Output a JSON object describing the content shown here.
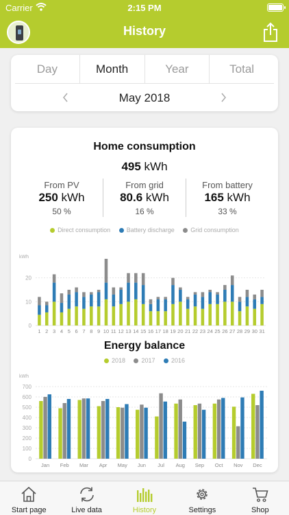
{
  "status_bar": {
    "carrier": "Carrier",
    "time": "2:15 PM"
  },
  "header": {
    "title": "History"
  },
  "period": {
    "tabs": [
      {
        "label": "Day"
      },
      {
        "label": "Month",
        "active": true
      },
      {
        "label": "Year"
      },
      {
        "label": "Total"
      }
    ],
    "current": "May 2018"
  },
  "consumption": {
    "title": "Home consumption",
    "total_value": "495",
    "total_unit": "kWh",
    "stats": [
      {
        "label": "From PV",
        "value": "250",
        "unit": "kWh",
        "percent": "50 %"
      },
      {
        "label": "From grid",
        "value": "80.6",
        "unit": "kWh",
        "percent": "16 %"
      },
      {
        "label": "From battery",
        "value": "165",
        "unit": "kWh",
        "percent": "33 %"
      }
    ],
    "legend": [
      {
        "label": "Direct consumption",
        "color": "#b5cc2e"
      },
      {
        "label": "Battery discharge",
        "color": "#2e7cb5"
      },
      {
        "label": "Grid consumption",
        "color": "#8c8c8c"
      }
    ]
  },
  "energy_balance": {
    "title": "Energy balance",
    "legend": [
      {
        "label": "2018",
        "color": "#b5cc2e"
      },
      {
        "label": "2017",
        "color": "#8c8c8c"
      },
      {
        "label": "2016",
        "color": "#2e7cb5"
      }
    ]
  },
  "chart_data": [
    {
      "type": "bar",
      "stacked": true,
      "unit": "kWh",
      "ylim": [
        0,
        30
      ],
      "yticks": [
        0,
        10,
        20
      ],
      "grid": true,
      "categories": [
        "1",
        "2",
        "3",
        "4",
        "5",
        "6",
        "7",
        "8",
        "9",
        "10",
        "11",
        "12",
        "13",
        "14",
        "15",
        "16",
        "17",
        "18",
        "19",
        "20",
        "21",
        "22",
        "23",
        "24",
        "25",
        "26",
        "27",
        "28",
        "29",
        "30",
        "31"
      ],
      "series": [
        {
          "name": "Direct consumption",
          "color": "#b5cc2e",
          "values": [
            4.5,
            5.5,
            10,
            5.5,
            7,
            8,
            7,
            8,
            8,
            11,
            8,
            9,
            10,
            11,
            9,
            6,
            6,
            6,
            9,
            10,
            7,
            8,
            7,
            9,
            9,
            10,
            10,
            6,
            8,
            7,
            9
          ]
        },
        {
          "name": "Battery discharge",
          "color": "#2e7cb5",
          "values": [
            4,
            3,
            8,
            4,
            6,
            6,
            5,
            5,
            6,
            7,
            5,
            6,
            8,
            7,
            8,
            3,
            5,
            5,
            8,
            5,
            4,
            5,
            5,
            5,
            4,
            5,
            7,
            4,
            4,
            4,
            3
          ]
        },
        {
          "name": "Grid consumption",
          "color": "#8c8c8c",
          "values": [
            3.5,
            1.5,
            3.5,
            4,
            2,
            2,
            2,
            1,
            1,
            10,
            3,
            1,
            4,
            4,
            5,
            2,
            1,
            1,
            3,
            1,
            1,
            1,
            2,
            1,
            1,
            2,
            4,
            2,
            3,
            2,
            3
          ]
        }
      ]
    },
    {
      "type": "bar",
      "unit": "kWh",
      "ylim": [
        0,
        800
      ],
      "yticks": [
        0,
        100,
        200,
        300,
        400,
        500,
        600,
        700
      ],
      "grid": true,
      "categories": [
        "Jan",
        "Feb",
        "Mar",
        "Apr",
        "May",
        "Jun",
        "Jul",
        "Aug",
        "Sep",
        "Oct",
        "Nov",
        "Dec"
      ],
      "series": [
        {
          "name": "2018",
          "color": "#b5cc2e",
          "values": [
            560,
            490,
            570,
            510,
            500,
            475,
            410,
            535,
            520,
            535,
            505,
            630
          ]
        },
        {
          "name": "2017",
          "color": "#8c8c8c",
          "values": [
            600,
            540,
            585,
            560,
            495,
            525,
            635,
            575,
            535,
            575,
            315,
            520
          ]
        },
        {
          "name": "2016",
          "color": "#2e7cb5",
          "values": [
            625,
            580,
            585,
            580,
            530,
            495,
            555,
            360,
            475,
            590,
            595,
            660
          ]
        }
      ]
    }
  ],
  "tab_bar": {
    "items": [
      {
        "label": "Start page",
        "icon": "home-icon"
      },
      {
        "label": "Live data",
        "icon": "refresh-icon"
      },
      {
        "label": "History",
        "icon": "bar-chart-icon",
        "active": true
      },
      {
        "label": "Settings",
        "icon": "gear-icon"
      },
      {
        "label": "Shop",
        "icon": "cart-icon"
      }
    ]
  }
}
